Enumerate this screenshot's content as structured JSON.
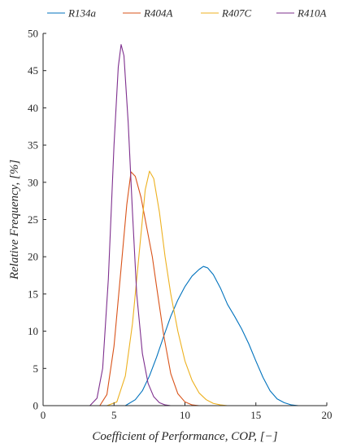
{
  "chart_data": {
    "type": "line",
    "xlabel": "Coefficient of Performance, COP, [−]",
    "ylabel": "Relative Frequency, [%]",
    "xlim": [
      0,
      20
    ],
    "ylim": [
      0,
      50
    ],
    "xticks": [
      0,
      5,
      10,
      15,
      20
    ],
    "yticks": [
      0,
      5,
      10,
      15,
      20,
      25,
      30,
      35,
      40,
      45,
      50
    ],
    "grid": false,
    "legend_position": "top",
    "series": [
      {
        "name": "R134a",
        "color": "#0072BD",
        "x": [
          5.8,
          6.5,
          7.0,
          7.5,
          8.0,
          8.5,
          9.0,
          9.5,
          10.0,
          10.5,
          11.0,
          11.3,
          11.6,
          12.0,
          12.5,
          13.0,
          13.5,
          14.0,
          14.5,
          15.0,
          15.5,
          16.0,
          16.5,
          17.0,
          17.5,
          18.0
        ],
        "y": [
          0,
          0.8,
          2.0,
          4.0,
          6.5,
          9.3,
          12.0,
          14.2,
          16.0,
          17.4,
          18.3,
          18.7,
          18.5,
          17.6,
          15.8,
          13.6,
          12.0,
          10.3,
          8.3,
          6.0,
          3.8,
          2.0,
          0.9,
          0.4,
          0.1,
          0
        ]
      },
      {
        "name": "R404A",
        "color": "#D95319",
        "x": [
          4.0,
          4.5,
          5.0,
          5.5,
          5.9,
          6.2,
          6.5,
          6.9,
          7.3,
          7.7,
          8.0,
          8.5,
          9.0,
          9.5,
          10.0,
          10.5,
          11.0
        ],
        "y": [
          0,
          1.5,
          8.0,
          18.5,
          27.0,
          31.4,
          30.8,
          28.0,
          24.0,
          20.0,
          16.0,
          9.5,
          4.3,
          1.6,
          0.5,
          0.1,
          0
        ]
      },
      {
        "name": "R407C",
        "color": "#EDB120",
        "x": [
          4.5,
          5.2,
          5.8,
          6.3,
          6.8,
          7.2,
          7.5,
          7.8,
          8.2,
          8.6,
          9.0,
          9.5,
          10.0,
          10.5,
          11.0,
          11.5,
          12.0,
          12.5,
          13.0
        ],
        "y": [
          0,
          0.5,
          4.0,
          11.0,
          21.0,
          29.0,
          31.5,
          30.5,
          26.0,
          20.0,
          15.0,
          10.0,
          6.0,
          3.4,
          1.7,
          0.8,
          0.3,
          0.1,
          0
        ]
      },
      {
        "name": "R410A",
        "color": "#7E2F8E",
        "x": [
          3.3,
          3.8,
          4.2,
          4.6,
          5.0,
          5.3,
          5.5,
          5.7,
          6.0,
          6.3,
          6.6,
          7.0,
          7.4,
          7.8,
          8.2,
          8.6,
          9.0
        ],
        "y": [
          0,
          1.0,
          5.0,
          17.0,
          35.0,
          45.5,
          48.5,
          47.0,
          38.0,
          26.0,
          15.0,
          7.0,
          3.0,
          1.2,
          0.4,
          0.1,
          0
        ]
      }
    ]
  }
}
